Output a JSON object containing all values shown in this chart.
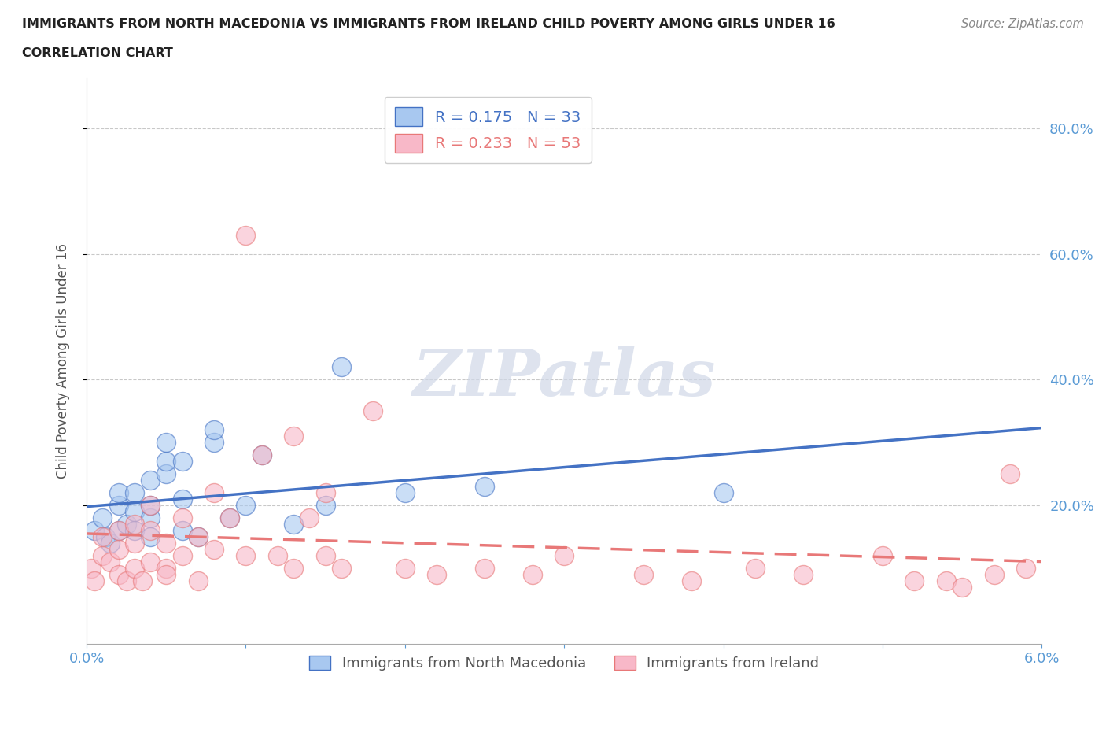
{
  "title_line1": "IMMIGRANTS FROM NORTH MACEDONIA VS IMMIGRANTS FROM IRELAND CHILD POVERTY AMONG GIRLS UNDER 16",
  "title_line2": "CORRELATION CHART",
  "source": "Source: ZipAtlas.com",
  "ylabel": "Child Poverty Among Girls Under 16",
  "xlim": [
    0.0,
    0.06
  ],
  "ylim": [
    -0.02,
    0.88
  ],
  "xticks": [
    0.0,
    0.01,
    0.02,
    0.03,
    0.04,
    0.05,
    0.06
  ],
  "xtick_labels": [
    "0.0%",
    "",
    "",
    "",
    "",
    "",
    "6.0%"
  ],
  "yticks": [
    0.2,
    0.4,
    0.6,
    0.8
  ],
  "ytick_labels": [
    "20.0%",
    "40.0%",
    "60.0%",
    "80.0%"
  ],
  "r1": 0.175,
  "n1": 33,
  "r2": 0.233,
  "n2": 53,
  "color1": "#a8c8f0",
  "color2": "#f8b8c8",
  "line1_color": "#4472c4",
  "line2_color": "#e87878",
  "tick_color": "#5b9bd5",
  "legend_label1": "Immigrants from North Macedonia",
  "legend_label2": "Immigrants from Ireland",
  "watermark": "ZIPatlas",
  "series1_x": [
    0.0005,
    0.001,
    0.0012,
    0.0015,
    0.002,
    0.002,
    0.002,
    0.0025,
    0.003,
    0.003,
    0.003,
    0.004,
    0.004,
    0.004,
    0.004,
    0.005,
    0.005,
    0.005,
    0.006,
    0.006,
    0.006,
    0.007,
    0.008,
    0.008,
    0.009,
    0.01,
    0.011,
    0.013,
    0.015,
    0.016,
    0.02,
    0.025,
    0.04
  ],
  "series1_y": [
    0.16,
    0.18,
    0.15,
    0.14,
    0.16,
    0.2,
    0.22,
    0.17,
    0.16,
    0.19,
    0.22,
    0.18,
    0.2,
    0.24,
    0.15,
    0.25,
    0.27,
    0.3,
    0.16,
    0.21,
    0.27,
    0.15,
    0.3,
    0.32,
    0.18,
    0.2,
    0.28,
    0.17,
    0.2,
    0.42,
    0.22,
    0.23,
    0.22
  ],
  "series2_x": [
    0.0003,
    0.0005,
    0.001,
    0.001,
    0.0015,
    0.002,
    0.002,
    0.002,
    0.0025,
    0.003,
    0.003,
    0.003,
    0.0035,
    0.004,
    0.004,
    0.004,
    0.005,
    0.005,
    0.005,
    0.006,
    0.006,
    0.007,
    0.007,
    0.008,
    0.008,
    0.009,
    0.01,
    0.01,
    0.011,
    0.012,
    0.013,
    0.013,
    0.014,
    0.015,
    0.015,
    0.016,
    0.018,
    0.02,
    0.022,
    0.025,
    0.028,
    0.03,
    0.035,
    0.038,
    0.042,
    0.045,
    0.05,
    0.052,
    0.054,
    0.055,
    0.057,
    0.058,
    0.059
  ],
  "series2_y": [
    0.1,
    0.08,
    0.12,
    0.15,
    0.11,
    0.09,
    0.13,
    0.16,
    0.08,
    0.1,
    0.14,
    0.17,
    0.08,
    0.11,
    0.16,
    0.2,
    0.1,
    0.14,
    0.09,
    0.12,
    0.18,
    0.08,
    0.15,
    0.22,
    0.13,
    0.18,
    0.63,
    0.12,
    0.28,
    0.12,
    0.31,
    0.1,
    0.18,
    0.12,
    0.22,
    0.1,
    0.35,
    0.1,
    0.09,
    0.1,
    0.09,
    0.12,
    0.09,
    0.08,
    0.1,
    0.09,
    0.12,
    0.08,
    0.08,
    0.07,
    0.09,
    0.25,
    0.1
  ]
}
